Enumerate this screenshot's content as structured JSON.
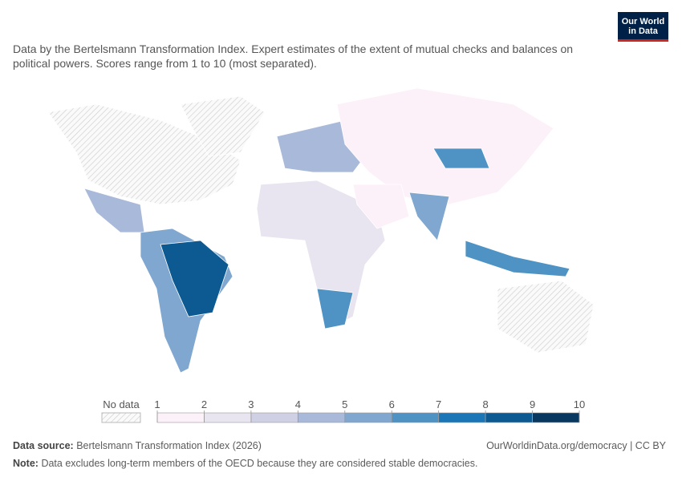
{
  "header": {
    "subtitle": "Data by the Bertelsmann Transformation Index. Expert estimates of the extent of mutual checks and balances on political powers. Scores range from 1 to 10 (most separated).",
    "logo": [
      "Our World",
      "in Data"
    ]
  },
  "legend": {
    "no_data": "No data",
    "ticks": [
      1,
      2,
      3,
      4,
      5,
      6,
      7,
      8,
      9,
      10
    ],
    "colors": [
      "#fcf1f8",
      "#e8e4f0",
      "#cfd0e4",
      "#a8b9d9",
      "#7fa7cf",
      "#4e93c4",
      "#1b76b8",
      "#0d5a93",
      "#08375f"
    ]
  },
  "footer": {
    "source_label": "Data source:",
    "source_text": "Bertelsmann Transformation Index (2026)",
    "url": "OurWorldinData.org/democracy | CC BY",
    "note_label": "Note:",
    "note_text": "Data excludes long-term members of the OECD because they are considered stable democracies."
  }
}
